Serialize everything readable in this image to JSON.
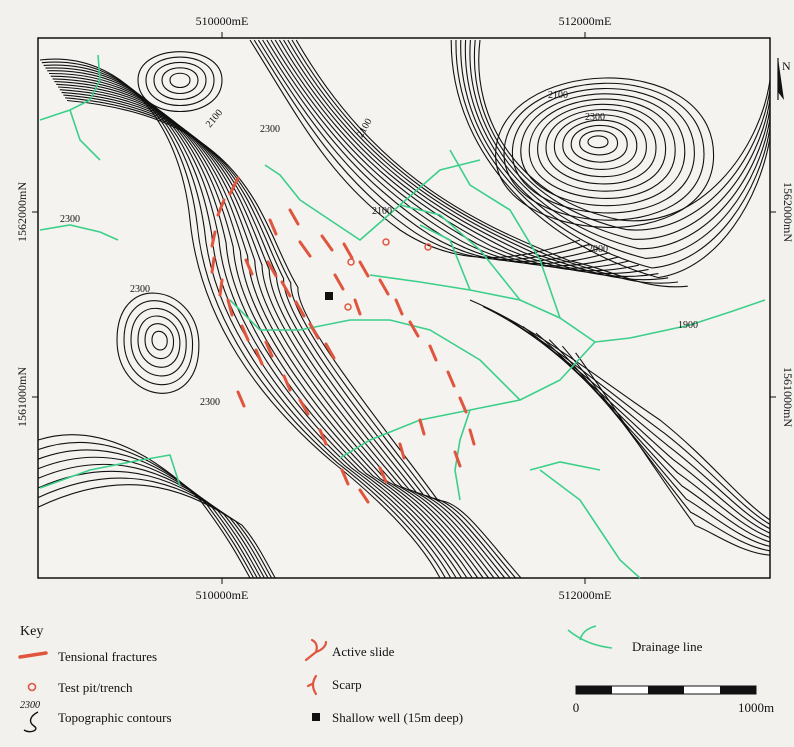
{
  "map": {
    "top_eastings": [
      "510000mE",
      "512000mE"
    ],
    "bottom_eastings": [
      "510000mE",
      "512000mE"
    ],
    "left_northings": [
      "1562000mN",
      "1561000mN"
    ],
    "right_northings": [
      "1562000mN",
      "1561000mN"
    ],
    "north_label": "N",
    "contour_labels": [
      "2100",
      "2300",
      "2300",
      "2100",
      "2100",
      "2300",
      "2300",
      "2000",
      "1900",
      "2300",
      "2100"
    ]
  },
  "legend": {
    "key_title": "Key",
    "tensional_fractures": "Tensional fractures",
    "test_pit": "Test pit/trench",
    "contours": "Topographic contours",
    "contour_sample": "2300",
    "active_slide": "Active slide",
    "scarp": "Scarp",
    "shallow_well": "Shallow well (15m deep)",
    "drainage_line": "Drainage line"
  },
  "scale_bar": {
    "start": "0",
    "end": "1000m"
  },
  "colors": {
    "contour": "#111111",
    "drainage": "#3ccf8a",
    "fracture": "#e0553d",
    "background": "#f2f1ee"
  }
}
